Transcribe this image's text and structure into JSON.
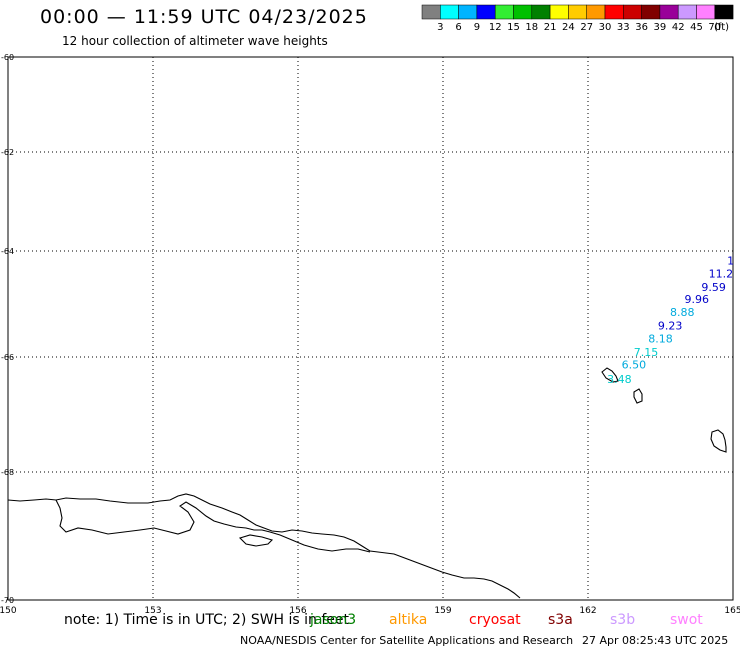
{
  "header": {
    "title": "00:00 — 11:59 UTC 04/23/2025",
    "subtitle": "12 hour collection of altimeter wave heights"
  },
  "colorbar": {
    "colors": [
      "#808080",
      "#00ffff",
      "#00b4ff",
      "#0000ff",
      "#33ee33",
      "#00c000",
      "#008000",
      "#ffff00",
      "#ffcc00",
      "#ff9900",
      "#ff0000",
      "#cc0000",
      "#800000",
      "#990099",
      "#cc99ff",
      "#ff80ff",
      "#000000"
    ],
    "labels": [
      "3",
      "6",
      "9",
      "12",
      "15",
      "18",
      "21",
      "24",
      "27",
      "30",
      "33",
      "36",
      "39",
      "42",
      "45",
      "70"
    ],
    "unit": "(ft)"
  },
  "map": {
    "x_ticks": [
      "150",
      "153",
      "156",
      "159",
      "162",
      "165"
    ],
    "y_ticks": [
      "-60",
      "-62",
      "-64",
      "-66",
      "-68",
      "-70"
    ],
    "lon_range": [
      150,
      165
    ],
    "lat_range": [
      -70,
      -60
    ],
    "wave_heights": [
      {
        "value": "1",
        "color": "#0000c8",
        "lon": 164.95,
        "lat": -64.25
      },
      {
        "value": "11.2",
        "color": "#0000c8",
        "lon": 164.75,
        "lat": -64.5
      },
      {
        "value": "9.59",
        "color": "#0000c8",
        "lon": 164.6,
        "lat": -64.75
      },
      {
        "value": "9.96",
        "color": "#0000c8",
        "lon": 164.25,
        "lat": -64.98
      },
      {
        "value": "8.88",
        "color": "#00aadd",
        "lon": 163.95,
        "lat": -65.23
      },
      {
        "value": "9.23",
        "color": "#0000c8",
        "lon": 163.7,
        "lat": -65.48
      },
      {
        "value": "8.18",
        "color": "#00aadd",
        "lon": 163.5,
        "lat": -65.73
      },
      {
        "value": "7.15",
        "color": "#00cccc",
        "lon": 163.2,
        "lat": -65.98
      },
      {
        "value": "6.50",
        "color": "#00aadd",
        "lon": 162.95,
        "lat": -66.2
      },
      {
        "value": "3.48",
        "color": "#00cccc",
        "lon": 162.65,
        "lat": -66.45
      }
    ]
  },
  "footer": {
    "note": "note: 1) Time is in UTC; 2) SWH is in feet",
    "satellites": [
      {
        "name": "jason3",
        "color": "#008000"
      },
      {
        "name": "altika",
        "color": "#ff9900"
      },
      {
        "name": "cryosat",
        "color": "#ff0000"
      },
      {
        "name": "s3a",
        "color": "#800000"
      },
      {
        "name": "s3b",
        "color": "#cc99ff"
      },
      {
        "name": "swot",
        "color": "#ff80ff"
      }
    ],
    "credit": "NOAA/NESDIS Center for Satellite Applications and Research",
    "timestamp": "27 Apr 08:25:43 UTC 2025"
  }
}
